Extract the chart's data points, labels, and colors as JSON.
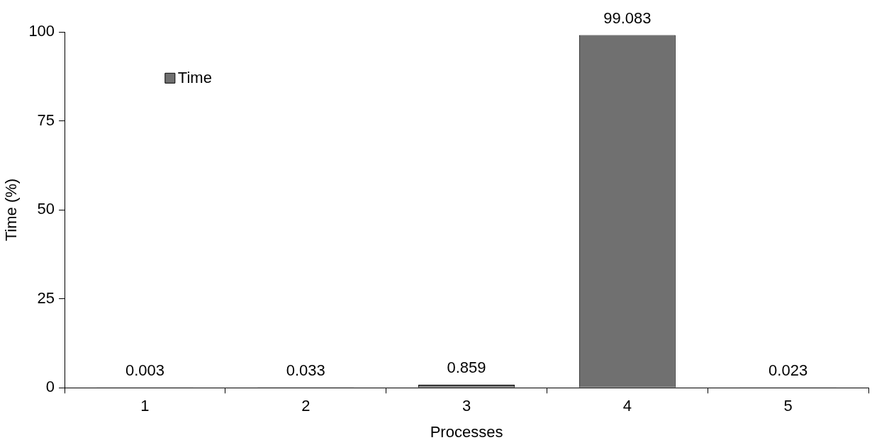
{
  "chart_data": {
    "type": "bar",
    "xlabel": "Processes",
    "ylabel": "Time (%)",
    "categories": [
      "1",
      "2",
      "3",
      "4",
      "5"
    ],
    "series": [
      {
        "name": "Time",
        "color": "#707070",
        "values": [
          0.003,
          0.033,
          0.859,
          99.083,
          0.023
        ]
      }
    ],
    "ylim": [
      0,
      100
    ],
    "yticks": [
      0,
      25,
      50,
      75,
      100
    ],
    "grid": false,
    "legend": "top left",
    "data_labels": true
  }
}
